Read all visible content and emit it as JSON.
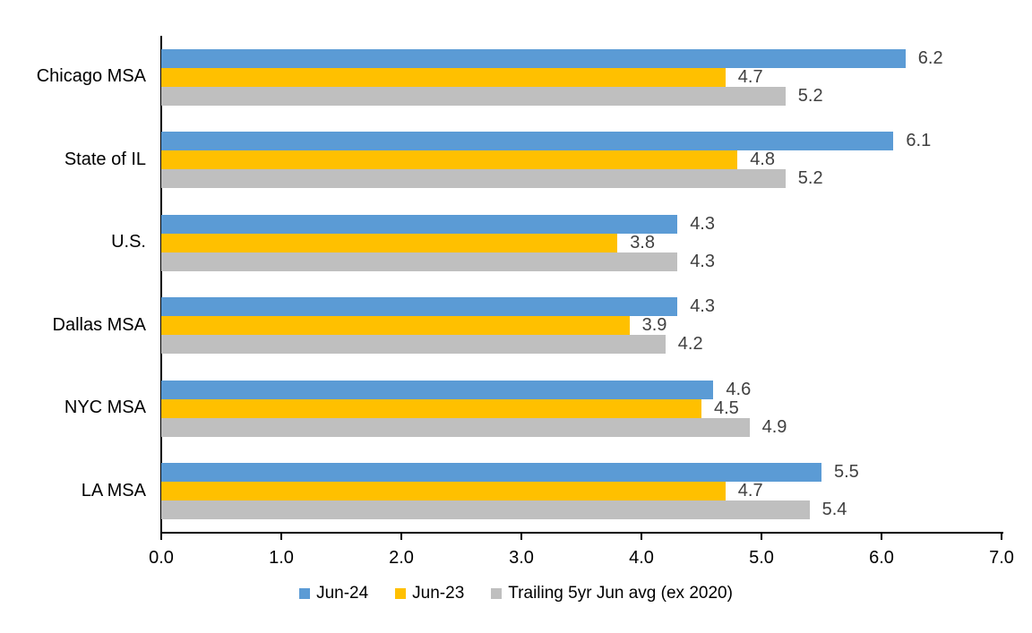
{
  "chart_data": {
    "type": "bar",
    "orientation": "horizontal",
    "title": "",
    "xlabel": "",
    "ylabel": "",
    "categories": [
      "Chicago MSA",
      "State of IL",
      "U.S.",
      "Dallas MSA",
      "NYC MSA",
      "LA MSA"
    ],
    "series": [
      {
        "name": "Jun-24",
        "color": "#5B9BD5",
        "values": [
          6.2,
          6.1,
          4.3,
          4.3,
          4.6,
          5.5
        ]
      },
      {
        "name": "Jun-23",
        "color": "#FFC000",
        "values": [
          4.7,
          4.8,
          3.8,
          3.9,
          4.5,
          4.7
        ]
      },
      {
        "name": "Trailing 5yr Jun avg (ex 2020)",
        "color": "#BFBFBF",
        "values": [
          5.2,
          5.2,
          4.3,
          4.2,
          4.9,
          5.4
        ]
      }
    ],
    "xlim": [
      0.0,
      7.0
    ],
    "x_ticks": [
      "0.0",
      "1.0",
      "2.0",
      "3.0",
      "4.0",
      "5.0",
      "6.0",
      "7.0"
    ],
    "grid": false,
    "data_labels": true,
    "data_label_color": "#404040",
    "axis_color": "#000000",
    "legend_position": "bottom"
  }
}
